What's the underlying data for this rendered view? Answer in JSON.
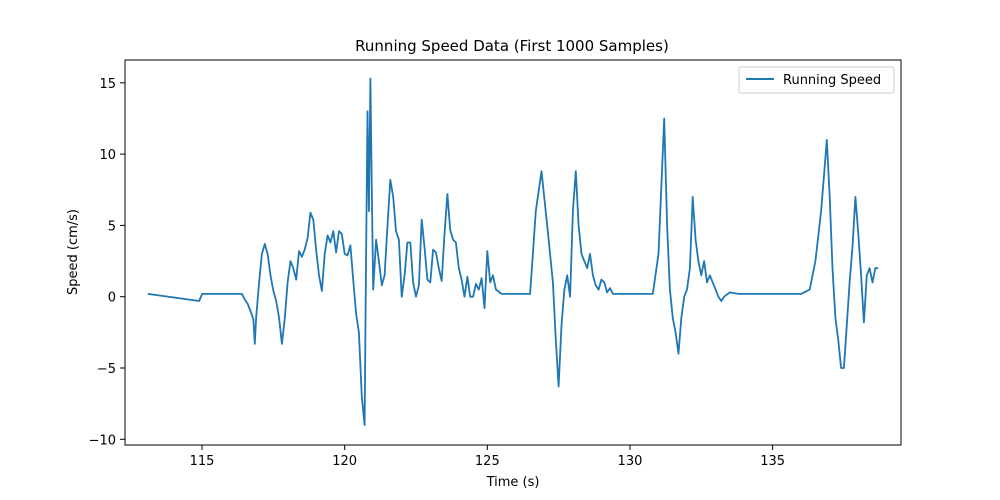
{
  "chart_data": {
    "type": "line",
    "title": "Running Speed Data (First 1000 Samples)",
    "xlabel": "Time (s)",
    "ylabel": "Speed (cm/s)",
    "xlim": [
      112.3,
      139.5
    ],
    "ylim": [
      -10.4,
      16.6
    ],
    "xticks": [
      115,
      120,
      125,
      130,
      135
    ],
    "yticks": [
      -10,
      -5,
      0,
      5,
      10,
      15
    ],
    "ytick_labels": [
      "−10",
      "−5",
      "0",
      "5",
      "10",
      "15"
    ],
    "grid": false,
    "legend_position": "top-right",
    "color": "#1f77b4",
    "series": [
      {
        "name": "Running Speed",
        "x": [
          113.1,
          114.9,
          115.0,
          116.4,
          116.5,
          116.6,
          116.7,
          116.8,
          116.85,
          116.9,
          117.0,
          117.1,
          117.2,
          117.3,
          117.4,
          117.5,
          117.6,
          117.7,
          117.8,
          117.9,
          118.0,
          118.1,
          118.2,
          118.3,
          118.4,
          118.5,
          118.6,
          118.7,
          118.8,
          118.9,
          119.0,
          119.1,
          119.2,
          119.3,
          119.4,
          119.5,
          119.6,
          119.7,
          119.8,
          119.9,
          120.0,
          120.1,
          120.2,
          120.3,
          120.4,
          120.5,
          120.6,
          120.7,
          120.75,
          120.8,
          120.85,
          120.9,
          120.95,
          121.0,
          121.1,
          121.2,
          121.3,
          121.4,
          121.5,
          121.6,
          121.7,
          121.8,
          121.9,
          122.0,
          122.1,
          122.2,
          122.3,
          122.4,
          122.5,
          122.6,
          122.7,
          122.8,
          122.9,
          123.0,
          123.1,
          123.2,
          123.3,
          123.4,
          123.5,
          123.6,
          123.7,
          123.8,
          123.9,
          124.0,
          124.1,
          124.2,
          124.3,
          124.4,
          124.5,
          124.6,
          124.7,
          124.8,
          124.9,
          125.0,
          125.1,
          125.2,
          125.3,
          125.5,
          126.5,
          126.7,
          126.9,
          127.1,
          127.3,
          127.4,
          127.5,
          127.6,
          127.7,
          127.8,
          127.9,
          128.0,
          128.1,
          128.2,
          128.3,
          128.4,
          128.5,
          128.6,
          128.7,
          128.8,
          128.9,
          129.0,
          129.1,
          129.2,
          129.3,
          129.4,
          129.6,
          130.0,
          130.5,
          130.8,
          131.0,
          131.2,
          131.3,
          131.4,
          131.5,
          131.6,
          131.7,
          131.8,
          131.9,
          132.0,
          132.1,
          132.2,
          132.3,
          132.4,
          132.5,
          132.6,
          132.7,
          132.8,
          132.9,
          133.0,
          133.1,
          133.2,
          133.3,
          133.5,
          133.8,
          134.0,
          134.5,
          135.0,
          135.5,
          136.0,
          136.3,
          136.5,
          136.7,
          136.8,
          136.9,
          137.0,
          137.1,
          137.2,
          137.3,
          137.4,
          137.5,
          137.6,
          137.7,
          137.8,
          137.9,
          138.0,
          138.1,
          138.2,
          138.3,
          138.4,
          138.5,
          138.6,
          138.7
        ],
        "y": [
          0.2,
          -0.3,
          0.2,
          0.2,
          -0.2,
          -0.5,
          -1.0,
          -1.6,
          -3.3,
          -1.4,
          1.0,
          3.0,
          3.7,
          3.0,
          1.5,
          0.4,
          -0.3,
          -1.5,
          -3.3,
          -1.5,
          1.0,
          2.5,
          2.0,
          1.2,
          3.2,
          2.8,
          3.3,
          4.1,
          5.9,
          5.4,
          3.3,
          1.5,
          0.4,
          3.0,
          4.3,
          3.8,
          4.6,
          3.1,
          4.6,
          4.4,
          3.0,
          2.9,
          3.6,
          1.2,
          -1.2,
          -2.5,
          -7.0,
          -9.0,
          3.0,
          13.0,
          6.0,
          15.3,
          7.5,
          0.5,
          4.0,
          2.5,
          0.8,
          1.5,
          5.0,
          8.2,
          7.0,
          4.6,
          4.0,
          0.0,
          1.5,
          3.8,
          3.8,
          1.0,
          0.0,
          0.8,
          5.4,
          3.4,
          1.2,
          1.0,
          3.3,
          3.1,
          2.0,
          1.1,
          4.4,
          7.2,
          4.7,
          4.0,
          3.8,
          2.0,
          1.2,
          0.0,
          1.4,
          0.0,
          0.0,
          0.9,
          0.5,
          1.3,
          -0.8,
          3.2,
          1.0,
          1.5,
          0.5,
          0.2,
          0.2,
          6.0,
          8.8,
          5.0,
          1.0,
          -3.0,
          -6.3,
          -2.0,
          0.5,
          1.5,
          0.0,
          6.0,
          8.8,
          5.0,
          3.0,
          2.5,
          2.0,
          3.0,
          1.5,
          0.8,
          0.5,
          1.2,
          1.0,
          0.3,
          0.6,
          0.2,
          0.2,
          0.2,
          0.2,
          0.2,
          3.0,
          12.5,
          5.0,
          0.5,
          -1.5,
          -2.5,
          -4.0,
          -1.5,
          0.0,
          0.5,
          2.0,
          7.0,
          4.0,
          2.5,
          1.5,
          2.5,
          1.0,
          1.5,
          1.0,
          0.5,
          0.0,
          -0.3,
          0.0,
          0.3,
          0.2,
          0.2,
          0.2,
          0.2,
          0.2,
          0.2,
          0.5,
          2.5,
          6.0,
          8.5,
          11.0,
          7.0,
          2.0,
          -1.5,
          -3.0,
          -5.0,
          -5.0,
          -2.0,
          1.0,
          3.5,
          7.0,
          4.5,
          1.5,
          -1.8,
          1.5,
          2.0,
          1.0,
          2.0,
          2.0
        ]
      }
    ]
  }
}
